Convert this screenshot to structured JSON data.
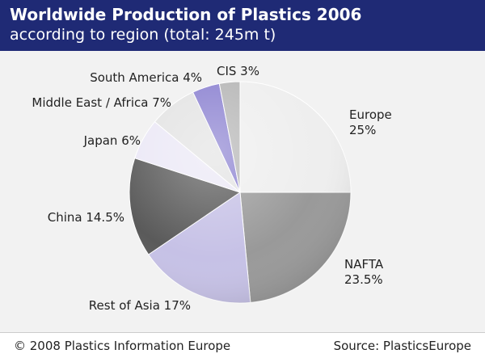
{
  "header": {
    "title": "Worldwide Production of Plastics 2006",
    "subtitle": "according to region (total: 245m t)"
  },
  "footer": {
    "copyright": "© 2008 Plastics Information Europe",
    "source": "Source: PlasticsEurope"
  },
  "chart_data": {
    "type": "pie",
    "title": "Worldwide Production of Plastics 2006",
    "subtitle": "according to region (total: 245m t)",
    "slices": [
      {
        "name": "Europe",
        "value": 25,
        "label_lines": [
          "Europe",
          "25%"
        ],
        "color": "#eeeeee"
      },
      {
        "name": "NAFTA",
        "value": 23.5,
        "label_lines": [
          "NAFTA",
          "23.5%"
        ],
        "color": "#999999"
      },
      {
        "name": "Rest of Asia",
        "value": 17,
        "label_lines": [
          "Rest of Asia 17%"
        ],
        "color": "#c6c1e6"
      },
      {
        "name": "China",
        "value": 14.5,
        "label_lines": [
          "China 14.5%"
        ],
        "color": "#5a5a5a"
      },
      {
        "name": "Japan",
        "value": 6,
        "label_lines": [
          "Japan 6%"
        ],
        "color": "#ebe8f6"
      },
      {
        "name": "Middle East / Africa",
        "value": 7,
        "label_lines": [
          "Middle East / Africa 7%"
        ],
        "color": "#e3e3e3"
      },
      {
        "name": "South America",
        "value": 4,
        "label_lines": [
          "South America 4%"
        ],
        "color": "#8a80d0"
      },
      {
        "name": "CIS",
        "value": 3,
        "label_lines": [
          "CIS 3%"
        ],
        "color": "#b5b5b5"
      }
    ]
  }
}
